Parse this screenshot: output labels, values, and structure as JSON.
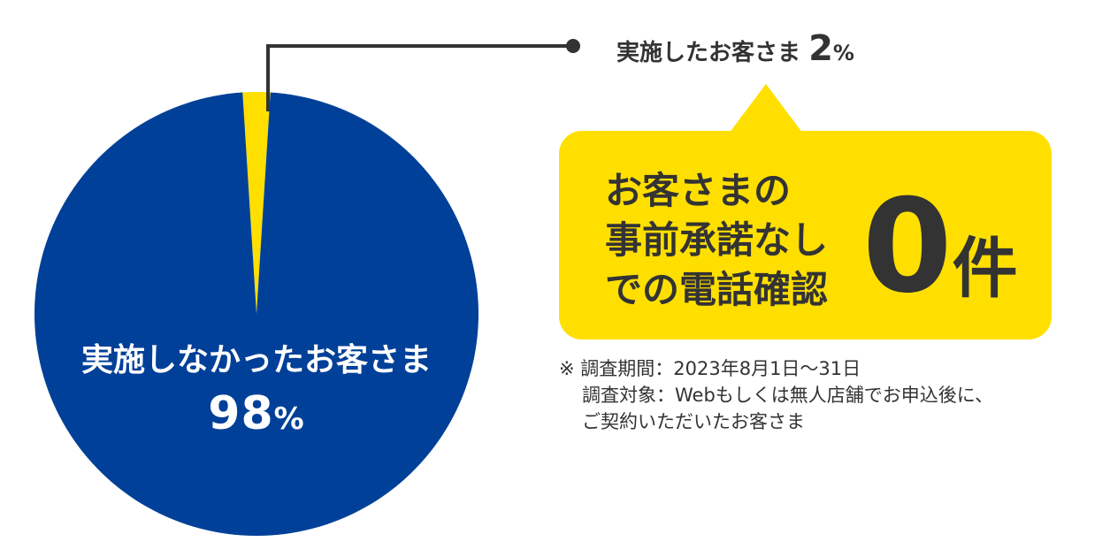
{
  "chart_data": {
    "type": "pie",
    "series": [
      {
        "label": "実施しなかったお客さま",
        "value": 98,
        "value_text": "98",
        "unit": "%",
        "color": "#004098"
      },
      {
        "label": "実施したお客さま",
        "value": 2,
        "value_text": "2",
        "unit": "%",
        "color": "#ffdf00"
      }
    ]
  },
  "callout": {
    "lines": [
      "お客さまの",
      "事前承諾なし",
      "での電話確認"
    ],
    "count_value": "0",
    "count_unit": "件"
  },
  "note": {
    "line1": "※ 調査期間：2023年8月1日〜31日",
    "line2": "調査対象：Webもしくは無人店舗でお申込後に、",
    "line3": "ご契約いただいたお客さま"
  },
  "colors": {
    "pie_major": "#004098",
    "pie_minor": "#ffdf00",
    "callout_bg": "#ffdf00",
    "text": "#333333",
    "leader": "#333333"
  }
}
